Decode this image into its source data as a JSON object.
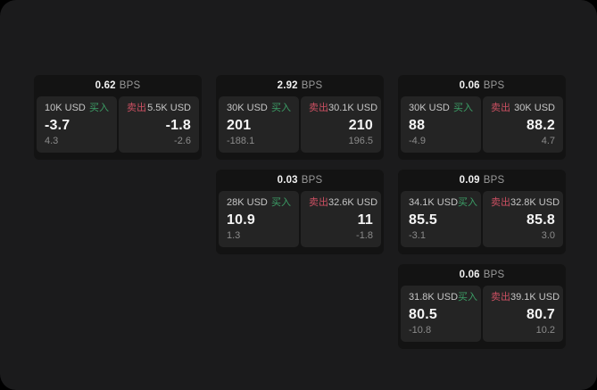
{
  "labels": {
    "buy": "买入",
    "sell": "卖出",
    "bps_unit": "BPS"
  },
  "colors": {
    "page_bg": "#000000",
    "frame_bg": "#1b1b1c",
    "card_bg": "#131313",
    "panel_bg": "#242424",
    "buy_accent": "#3c9e66",
    "sell_accent": "#cb5062",
    "value_text": "#f5f5f5",
    "volume_text": "#c6c6c6",
    "sub_text": "#8b8b8b",
    "bps_value_text": "#f0f0f0",
    "bps_unit_text": "#999999"
  },
  "cards": [
    {
      "bps": "0.62",
      "col": 0,
      "row": 0,
      "buy": {
        "volume": "10K USD",
        "value": "-3.7",
        "sub": "4.3"
      },
      "sell": {
        "volume": "5.5K USD",
        "value": "-1.8",
        "sub": "-2.6"
      }
    },
    {
      "bps": "2.92",
      "col": 1,
      "row": 0,
      "buy": {
        "volume": "30K USD",
        "value": "201",
        "sub": "-188.1"
      },
      "sell": {
        "volume": "30.1K USD",
        "value": "210",
        "sub": "196.5"
      }
    },
    {
      "bps": "0.06",
      "col": 2,
      "row": 0,
      "buy": {
        "volume": "30K USD",
        "value": "88",
        "sub": "-4.9"
      },
      "sell": {
        "volume": "30K USD",
        "value": "88.2",
        "sub": "4.7"
      }
    },
    {
      "bps": "0.03",
      "col": 1,
      "row": 1,
      "buy": {
        "volume": "28K USD",
        "value": "10.9",
        "sub": "1.3"
      },
      "sell": {
        "volume": "32.6K USD",
        "value": "11",
        "sub": "-1.8"
      }
    },
    {
      "bps": "0.09",
      "col": 2,
      "row": 1,
      "buy": {
        "volume": "34.1K USD",
        "value": "85.5",
        "sub": "-3.1"
      },
      "sell": {
        "volume": "32.8K USD",
        "value": "85.8",
        "sub": "3.0"
      }
    },
    {
      "bps": "0.06",
      "col": 2,
      "row": 2,
      "buy": {
        "volume": "31.8K USD",
        "value": "80.5",
        "sub": "-10.8"
      },
      "sell": {
        "volume": "39.1K USD",
        "value": "80.7",
        "sub": "10.2"
      }
    }
  ],
  "layout_grid": {
    "col_lefts": [
      38,
      242,
      446
    ],
    "row_tops": [
      84,
      190,
      296
    ]
  }
}
